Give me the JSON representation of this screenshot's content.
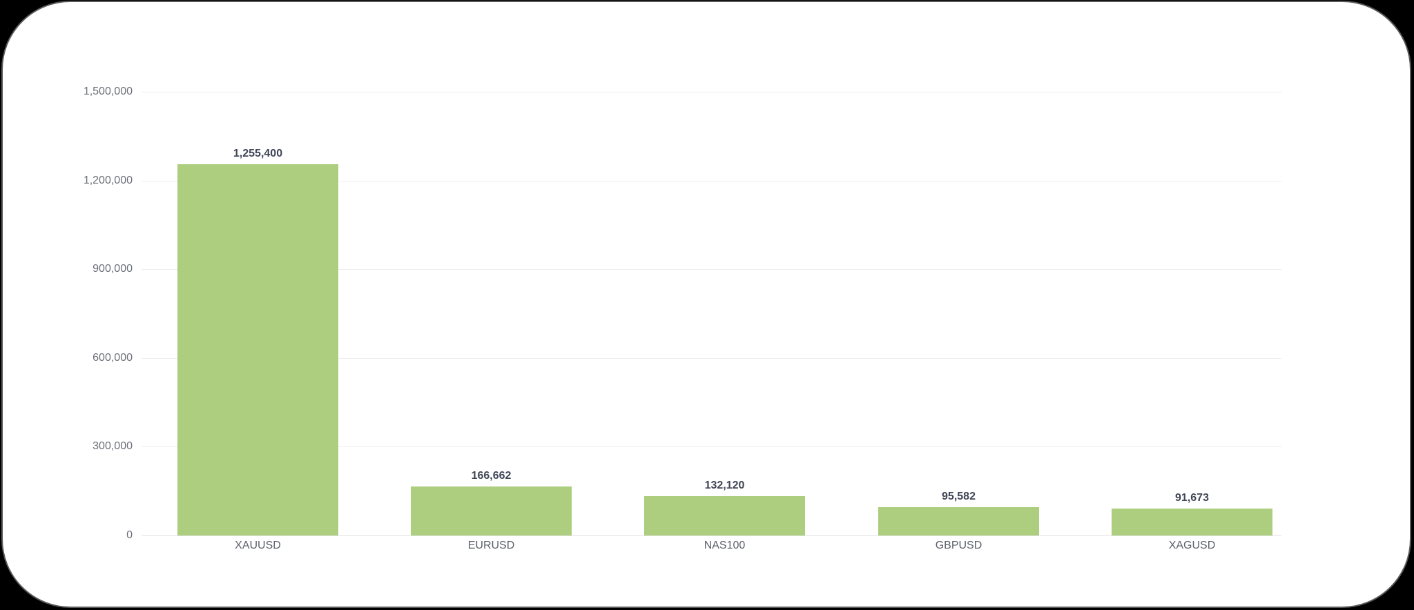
{
  "chart_data": {
    "type": "bar",
    "title": "",
    "xlabel": "",
    "ylabel": "",
    "categories": [
      "XAUUSD",
      "EURUSD",
      "NAS100",
      "GBPUSD",
      "XAGUSD"
    ],
    "values": [
      1255400,
      166662,
      132120,
      95582,
      91673
    ],
    "value_labels": [
      "1,255,400",
      "166,662",
      "132,120",
      "95,582",
      "91,673"
    ],
    "ylim": [
      0,
      1500000
    ],
    "yticks": [
      0,
      300000,
      600000,
      900000,
      1200000,
      1500000
    ],
    "ytick_labels": [
      "0",
      "300,000",
      "600,000",
      "900,000",
      "1,200,000",
      "1,500,000"
    ],
    "grid": true,
    "legend": "none",
    "bar_color": "#acce7e"
  }
}
